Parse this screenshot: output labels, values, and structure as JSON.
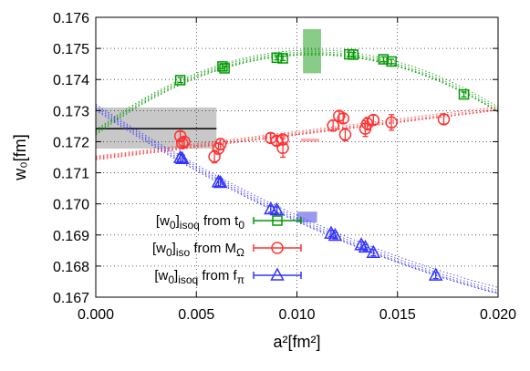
{
  "chart_data": {
    "type": "scatter",
    "xlabel": "a²[fm²]",
    "ylabel": "w₀[fm]",
    "xlim": [
      0.0,
      0.02
    ],
    "ylim": [
      0.167,
      0.176
    ],
    "xticks": [
      "0.000",
      "0.005",
      "0.010",
      "0.015",
      "0.020"
    ],
    "yticks": [
      "0.167",
      "0.168",
      "0.169",
      "0.170",
      "0.171",
      "0.172",
      "0.173",
      "0.174",
      "0.175",
      "0.176"
    ],
    "grid": true,
    "legend_position": "bottom-left",
    "series": [
      {
        "name": "[w0]isoq from t0",
        "legend_main": "[w",
        "legend_sub1": "0",
        "legend_mid": "]",
        "legend_sub2": "isoq",
        "legend_tail": " from t",
        "legend_sub3": "0",
        "color": "#009900",
        "marker": "square",
        "points": [
          [
            0.0042,
            0.17398,
            8e-05
          ],
          [
            0.0063,
            0.17442,
            7e-05
          ],
          [
            0.0064,
            0.17436,
            7e-05
          ],
          [
            0.009,
            0.1747,
            7e-05
          ],
          [
            0.0093,
            0.17468,
            7e-05
          ],
          [
            0.0126,
            0.17481,
            7e-05
          ],
          [
            0.0128,
            0.1748,
            7e-05
          ],
          [
            0.0143,
            0.17465,
            8e-05
          ],
          [
            0.0147,
            0.17458,
            7e-05
          ],
          [
            0.0183,
            0.17352,
            8e-05
          ]
        ],
        "continuum_band": [
          0.0103,
          0.0112,
          0.1742,
          0.17562
        ]
      },
      {
        "name": "[w0]iso from MΩ",
        "legend_main": "[w",
        "legend_sub1": "0",
        "legend_mid": "]",
        "legend_sub2": "iso",
        "legend_tail": " from M",
        "legend_sub3": "Ω",
        "color": "#ff3333",
        "marker": "circle",
        "points": [
          [
            0.0042,
            0.17218,
            0.00015
          ],
          [
            0.0043,
            0.17195,
            0.00015
          ],
          [
            0.0044,
            0.172,
            0.00015
          ],
          [
            0.0059,
            0.17152,
            0.0002
          ],
          [
            0.0061,
            0.17178,
            0.00018
          ],
          [
            0.0062,
            0.17192,
            0.00018
          ],
          [
            0.0087,
            0.17212,
            0.00015
          ],
          [
            0.009,
            0.17203,
            0.00015
          ],
          [
            0.0093,
            0.1718,
            0.0003
          ],
          [
            0.0093,
            0.17207,
            0.00015
          ],
          [
            0.0118,
            0.17252,
            0.00018
          ],
          [
            0.0121,
            0.17283,
            0.00015
          ],
          [
            0.0123,
            0.17275,
            0.00015
          ],
          [
            0.0124,
            0.17223,
            0.0002
          ],
          [
            0.0134,
            0.17242,
            0.00025
          ],
          [
            0.0135,
            0.17258,
            0.0002
          ],
          [
            0.0138,
            0.1727,
            0.00015
          ],
          [
            0.0147,
            0.17262,
            0.00025
          ],
          [
            0.0173,
            0.17272,
            0.00015
          ]
        ],
        "continuum_band": [
          0.0102,
          0.0111,
          0.172,
          0.1721
        ]
      },
      {
        "name": "[w0]isoq from fπ",
        "legend_main": "[w",
        "legend_sub1": "0",
        "legend_mid": "]",
        "legend_sub2": "isoq",
        "legend_tail": " from f",
        "legend_sub3": "π",
        "color": "#3333ff",
        "marker": "triangle",
        "points": [
          [
            0.0042,
            0.17148,
            0.00012
          ],
          [
            0.0043,
            0.17145,
            0.00012
          ],
          [
            0.0061,
            0.1707,
            0.00012
          ],
          [
            0.0062,
            0.17068,
            0.00012
          ],
          [
            0.0087,
            0.16983,
            0.0001
          ],
          [
            0.009,
            0.1698,
            0.0001
          ],
          [
            0.0117,
            0.16905,
            0.0001
          ],
          [
            0.0119,
            0.16898,
            0.0001
          ],
          [
            0.0132,
            0.16868,
            0.0001
          ],
          [
            0.0134,
            0.1686,
            0.0001
          ],
          [
            0.0138,
            0.16843,
            0.0001
          ],
          [
            0.0169,
            0.1677,
            0.0001
          ]
        ],
        "continuum_band": [
          0.01,
          0.011,
          0.1694,
          0.16975
        ]
      }
    ],
    "gray_band": {
      "x": [
        0.0,
        0.006
      ],
      "y": [
        0.17178,
        0.1731
      ],
      "center": 0.17242
    }
  }
}
